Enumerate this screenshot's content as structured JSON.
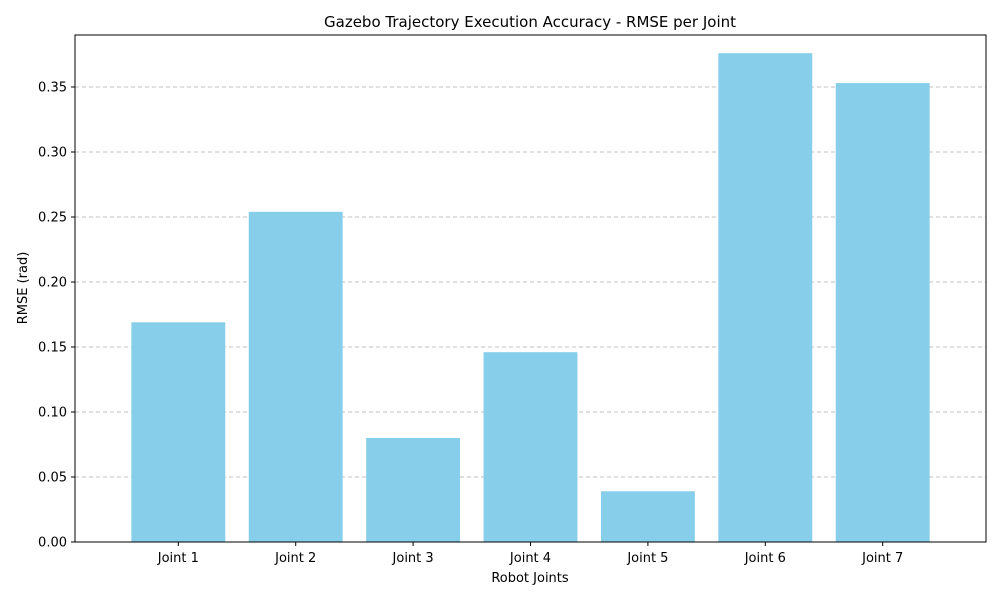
{
  "chart_data": {
    "type": "bar",
    "title": "Gazebo Trajectory Execution Accuracy - RMSE per Joint",
    "xlabel": "Robot Joints",
    "ylabel": "RMSE (rad)",
    "categories": [
      "Joint 1",
      "Joint 2",
      "Joint 3",
      "Joint 4",
      "Joint 5",
      "Joint 6",
      "Joint 7"
    ],
    "values": [
      0.169,
      0.254,
      0.08,
      0.146,
      0.039,
      0.376,
      0.353
    ],
    "ylim": [
      0,
      0.39
    ],
    "yticks": [
      "0.00",
      "0.05",
      "0.10",
      "0.15",
      "0.20",
      "0.25",
      "0.30",
      "0.35"
    ],
    "grid": "horizontal dashed",
    "bar_color": "#87ceeb",
    "grid_color": "#c0c0c0"
  }
}
